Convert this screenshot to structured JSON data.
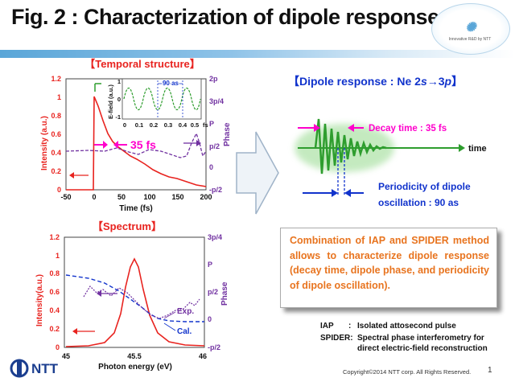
{
  "title": "Fig. 2 : Characterization of dipole response",
  "logo_caption": "Innovative R&D by NTT",
  "temporal": {
    "heading": "【Temporal structure】",
    "y_ticks": [
      "1.2",
      "1",
      "0.8",
      "0.6",
      "0.4",
      "0.2",
      "0"
    ],
    "x_ticks": [
      "-50",
      "0",
      "50",
      "100",
      "150",
      "200"
    ],
    "right_ticks": [
      "2p",
      "3p/4",
      "P",
      "p/2",
      "0",
      "-p/2"
    ],
    "y_label": "Intensity (a.u.)",
    "x_label": "Time (fs)",
    "right_label": "Phase",
    "decay_label": "35 fs",
    "inset": {
      "y_label": "E-field (a.u.)",
      "y_ticks": [
        "1",
        "0",
        "-1"
      ],
      "x_ticks": [
        "0",
        "0.1",
        "0.2",
        "0.3",
        "0.4",
        "0.5"
      ],
      "x_unit": "fs",
      "period_label": "90 as"
    }
  },
  "spectrum": {
    "heading": "【Spectrum】",
    "y_ticks": [
      "1.2",
      "1",
      "0.8",
      "0.6",
      "0.4",
      "0.2",
      "0"
    ],
    "x_ticks": [
      "45",
      "45.5",
      "46"
    ],
    "right_ticks": [
      "3p/4",
      "P",
      "p/2",
      "0",
      "-p/2"
    ],
    "y_label": "Intensity(a.u.)",
    "x_label": "Photon energy (eV)",
    "right_label": "Phase",
    "exp_label": "Exp.",
    "cal_label": "Cal."
  },
  "dipole": {
    "heading_prefix": "【Dipole response : Ne 2",
    "heading_s": "s",
    "heading_arrow": "→3",
    "heading_p": "p",
    "heading_suffix": "】",
    "decay_label": "Decay time : 35 fs",
    "time_label": "time",
    "periodicity_line1": "Periodicity of dipole",
    "periodicity_line2": "oscillation : 90 as"
  },
  "combination_text": "Combination of IAP and SPIDER method allows to characterize dipole response (decay time, dipole phase, and periodicity of dipole oscillation).",
  "definitions": [
    {
      "term": "IAP",
      "sep": ":",
      "text": "Isolated attosecond pulse"
    },
    {
      "term": "SPIDER:",
      "sep": "",
      "text": "Spectral phase interferometry for"
    },
    {
      "term": "",
      "sep": "",
      "text": "direct electric-field reconstruction"
    }
  ],
  "footer": {
    "ntt": "NTT",
    "copyright": "Copyright©2014 NTT corp. All Rights Reserved.",
    "page": "1"
  },
  "colors": {
    "red": "#e8231f",
    "purple": "#7030a0",
    "magenta": "#ff00cc",
    "blue": "#1133cc",
    "navy": "#1b3e8f",
    "orange": "#e8741f",
    "green": "#2e9d2e"
  }
}
